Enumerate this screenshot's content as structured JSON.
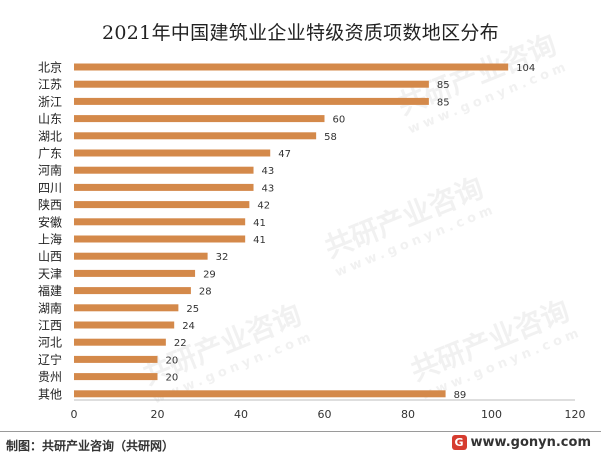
{
  "header": {
    "title": "2021年中国建筑业企业特级资质项数地区分布"
  },
  "footer": {
    "source": "制图：共研产业咨询（共研网）",
    "site": "www.gonyn.com",
    "logo_glyph": "G"
  },
  "watermark": {
    "brand": "共研产业咨询",
    "url": "www.gonyn.com"
  },
  "chart_data": {
    "type": "bar",
    "orientation": "horizontal",
    "title": "2021年中国建筑业企业特级资质项数地区分布",
    "categories": [
      "北京",
      "江苏",
      "浙江",
      "山东",
      "湖北",
      "广东",
      "河南",
      "四川",
      "陕西",
      "安徽",
      "上海",
      "山西",
      "天津",
      "福建",
      "湖南",
      "江西",
      "河北",
      "辽宁",
      "贵州",
      "其他"
    ],
    "values": [
      104,
      85,
      85,
      60,
      58,
      47,
      43,
      43,
      42,
      41,
      41,
      32,
      29,
      28,
      25,
      24,
      22,
      20,
      20,
      89
    ],
    "xlim": [
      0,
      120
    ],
    "xticks": [
      0,
      20,
      40,
      60,
      80,
      100,
      120
    ],
    "grid": false,
    "legend": "none",
    "data_labels": true,
    "bar_color": "#d4894a"
  }
}
